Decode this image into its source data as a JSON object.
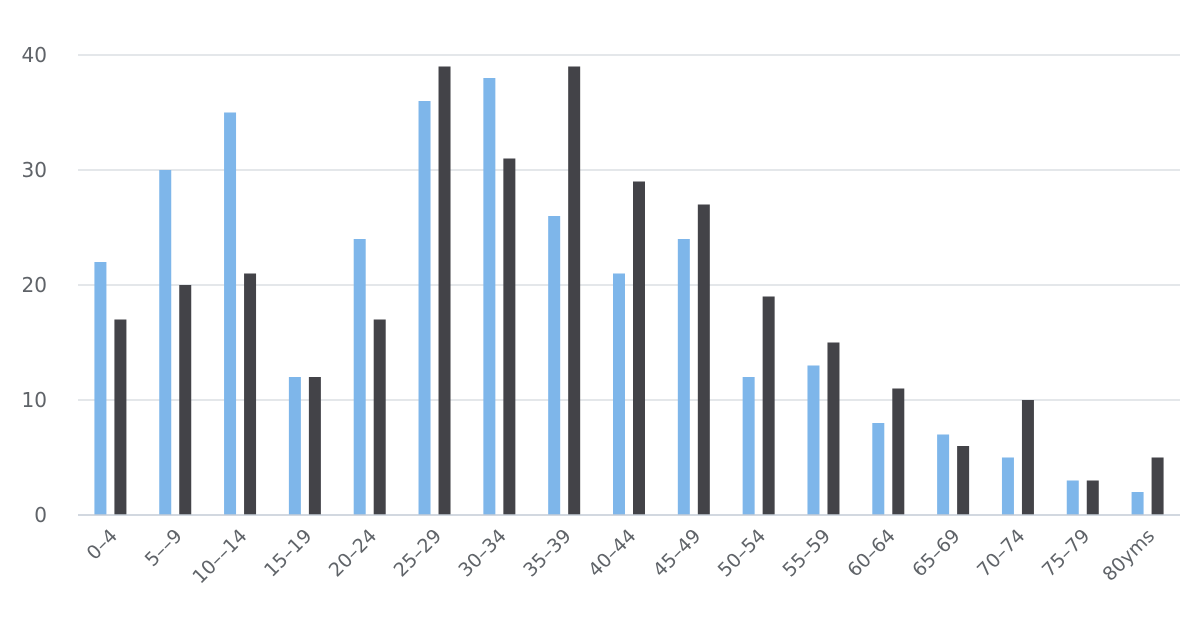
{
  "chart_data": {
    "type": "bar",
    "title": "",
    "xlabel": "",
    "ylabel": "",
    "categories": [
      "0–4",
      "5––9",
      "10––14",
      "15–19",
      "20–24",
      "25–29",
      "30–34",
      "35–39",
      "40–44",
      "45–49",
      "50–54",
      "55–59",
      "60–64",
      "65–69",
      "70–74",
      "75–79",
      "80yms"
    ],
    "series": [
      {
        "values": [
          22,
          30,
          35,
          12,
          24,
          36,
          38,
          26,
          21,
          24,
          12,
          13,
          8,
          7,
          5,
          3,
          2
        ],
        "color": "#7eb6ea"
      },
      {
        "values": [
          17,
          20,
          21,
          12,
          17,
          39,
          31,
          39,
          29,
          27,
          19,
          15,
          11,
          6,
          10,
          3,
          5
        ],
        "color": "#434348"
      }
    ],
    "ylim": [
      0,
      40
    ],
    "yticks": [
      0,
      10,
      20,
      30,
      40
    ],
    "grid": true,
    "legend": "none"
  }
}
